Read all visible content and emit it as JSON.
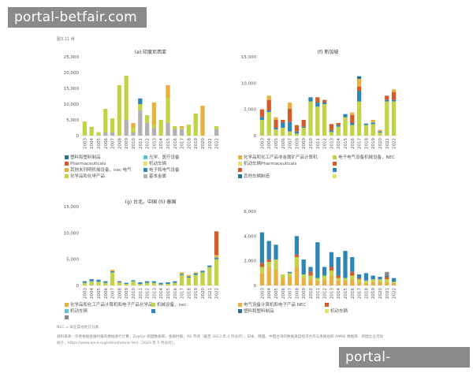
{
  "watermark": "portal-betfair.com",
  "continued_label": "图3.11 续",
  "colors": {
    "machinery": "#e9b040",
    "chemicals": "#c3d346",
    "electrical": "#2d86b7",
    "pharma": "#d45a27",
    "base_metals": "#b1b1b1",
    "optical": "#57c3d4",
    "vehicles": "#e3e36a",
    "plastics": "#2a6f8e"
  },
  "legend_left": {
    "items": [
      {
        "label": "塑料和塑料制品",
        "color": "#2a6f8e"
      },
      {
        "label": "光学、医疗设备",
        "color": "#57c3d4"
      },
      {
        "label": "Pharmaceuticals",
        "color": "#d45a27"
      },
      {
        "label": "机动车辆",
        "color": "#e3e36a"
      },
      {
        "label": "其他未列明机械设备，nec 电气",
        "color": "#e9b040"
      },
      {
        "label": "电子和电气设备",
        "color": "#2d86b7"
      },
      {
        "label": "化学品和化学产品",
        "color": "#c3d346"
      },
      {
        "label": "基本金属",
        "color": "#b1b1b1"
      }
    ]
  },
  "legend_right": {
    "items": [
      {
        "label": "化学品和化工产品非金属矿产品计算机",
        "color": "#e9b040"
      },
      {
        "label": "电子电气设备机械设备，NEC",
        "color": "#c3d346"
      },
      {
        "label": "机动车辆Pharmaceuticals",
        "color": "#e3e36a"
      },
      {
        "label": "",
        "color": "#d45a27"
      },
      {
        "label": "",
        "color": "#d45a27"
      },
      {
        "label": "",
        "color": "#2d86b7"
      },
      {
        "label": "其他车辆制造",
        "color": "#2a6f8e"
      },
      {
        "label": "",
        "color": "#e3e36a"
      }
    ]
  },
  "legend_bottom": {
    "items": [
      {
        "label": "化学品和化工产品计算机和电子产品化学品",
        "color": "#e9b040"
      },
      {
        "label": "机械设备，nec",
        "color": "#c3d346"
      },
      {
        "label": "电气设备计算机和电子产品 NEC",
        "color": "#e9b040"
      },
      {
        "label": "",
        "color": "#d45a27"
      },
      {
        "label": "机动车辆",
        "color": "#57c3d4"
      },
      {
        "label": "",
        "color": "#2d86b7"
      },
      {
        "label": "塑料和塑料制品",
        "color": "#2a6f8e"
      },
      {
        "label": "机动车辆",
        "color": "#e3e36a"
      },
      {
        "label": "",
        "color": "#8a8a8a"
      }
    ]
  },
  "notes": {
    "nec": "NEC = 未在其他地方分类",
    "source1": "资料来源：作者根据金融时报的数据进行计算，Zephyr 跨国数据库，金融时报，fDi 市场（截至 2023 年 4 月访问）；日本、韩国、中国台湾的数据来自经济合作与发展组织 AMNE 数据库：跨国企业活动",
    "source2": "统计，https://www.oecd.org/sti/ind/amne.htm（2023 年 5 月访问）。"
  },
  "chart_data": [
    {
      "id": "e",
      "title": "(e) 印度尼西亚",
      "type": "bar",
      "stacked": true,
      "ylim": [
        0,
        25000
      ],
      "yticks": [
        "0",
        "5,000",
        "10,000",
        "15,000",
        "20,000",
        "25,000"
      ],
      "categories": [
        "2003",
        "2004",
        "2005",
        "2006",
        "2007",
        "2008",
        "2009",
        "2010",
        "2011",
        "2012",
        "2013",
        "2014",
        "2015",
        "2016",
        "2017",
        "2018",
        "2019",
        "2020",
        "2021",
        "2022"
      ],
      "series": [
        {
          "name": "Base metals",
          "color": "#b1b1b1",
          "values": [
            0,
            0,
            200,
            1000,
            1000,
            0,
            5000,
            1000,
            8000,
            4000,
            2500,
            0,
            4000,
            2000,
            2000,
            0,
            0,
            0,
            0,
            2000
          ]
        },
        {
          "name": "Chemicals",
          "color": "#c3d346",
          "values": [
            4500,
            2800,
            900,
            7500,
            4500,
            16000,
            14000,
            1500,
            2000,
            2500,
            1000,
            5000,
            8000,
            1000,
            500,
            3500,
            7000,
            0,
            0,
            1000
          ]
        },
        {
          "name": "Machinery",
          "color": "#e9b040",
          "values": [
            0,
            0,
            0,
            0,
            0,
            0,
            0,
            1500,
            0,
            0,
            7000,
            0,
            4000,
            0,
            500,
            0,
            0,
            9500,
            0,
            0
          ]
        },
        {
          "name": "Electrical",
          "color": "#2d86b7",
          "values": [
            0,
            0,
            0,
            0,
            0,
            0,
            0,
            0,
            1800,
            0,
            0,
            0,
            0,
            0,
            0,
            0,
            0,
            0,
            0,
            0
          ]
        },
        {
          "name": "Vehicles",
          "color": "#e3e36a",
          "values": [
            0,
            0,
            0,
            0,
            0,
            0,
            0,
            0,
            0,
            0,
            0,
            0,
            0,
            0,
            0,
            0,
            0,
            0,
            0,
            0
          ]
        }
      ]
    },
    {
      "id": "f",
      "title": "(f) 新加坡",
      "type": "bar",
      "stacked": true,
      "ylim": [
        0,
        15000
      ],
      "yticks": [
        "0",
        "5,000",
        "10,000",
        "15,000"
      ],
      "categories": [
        "2003",
        "2004",
        "2005",
        "2006",
        "2007",
        "2008",
        "2009",
        "2010",
        "2011",
        "2012",
        "2013",
        "2014",
        "2015",
        "2016",
        "2017",
        "2018",
        "2019",
        "2020",
        "2021",
        "2022"
      ],
      "series": [
        {
          "name": "Chemicals",
          "color": "#c3d346",
          "values": [
            3000,
            4500,
            1200,
            1500,
            800,
            400,
            1500,
            6500,
            5500,
            6000,
            700,
            1700,
            3500,
            2000,
            6500,
            2000,
            2200,
            600,
            6500,
            6500
          ]
        },
        {
          "name": "Electrical",
          "color": "#2d86b7",
          "values": [
            500,
            300,
            300,
            1000,
            1800,
            400,
            200,
            800,
            800,
            300,
            300,
            300,
            600,
            400,
            2000,
            300,
            300,
            200,
            300,
            300
          ]
        },
        {
          "name": "Pharmaceuticals",
          "color": "#d45a27",
          "values": [
            1500,
            2000,
            1500,
            500,
            2500,
            1200,
            1300,
            0,
            1000,
            500,
            1200,
            400,
            0,
            1500,
            800,
            0,
            0,
            0,
            800,
            1500
          ]
        },
        {
          "name": "Machinery",
          "color": "#e9b040",
          "values": [
            0,
            800,
            500,
            0,
            1200,
            0,
            0,
            0,
            0,
            0,
            0,
            0,
            0,
            500,
            1500,
            0,
            500,
            300,
            0,
            500
          ]
        },
        {
          "name": "Plastics",
          "color": "#2a6f8e",
          "values": [
            0,
            0,
            0,
            0,
            0,
            0,
            0,
            0,
            0,
            0,
            0,
            0,
            0,
            0,
            500,
            0,
            0,
            0,
            0,
            0
          ]
        }
      ]
    },
    {
      "id": "g",
      "title": "(g) 台北，中国 (h) 泰国",
      "type": "bar",
      "stacked": true,
      "ylim": [
        0,
        15000
      ],
      "yticks": [
        "0",
        "5,000",
        "10,000",
        "15,000"
      ],
      "categories": [
        "2003",
        "2004",
        "2005",
        "2006",
        "2007",
        "2008",
        "2009",
        "2010",
        "2011",
        "2012",
        "2013",
        "2014",
        "2015",
        "2016",
        "2017",
        "2018",
        "2019",
        "2020",
        "2021",
        "2022"
      ],
      "series": [
        {
          "name": "Chemicals",
          "color": "#c3d346",
          "values": [
            500,
            800,
            700,
            500,
            2500,
            600,
            300,
            800,
            300,
            500,
            500,
            200,
            300,
            500,
            2000,
            1500,
            2000,
            2500,
            3500,
            5000
          ]
        },
        {
          "name": "Electrical",
          "color": "#2d86b7",
          "values": [
            300,
            400,
            400,
            300,
            200,
            200,
            200,
            200,
            300,
            300,
            300,
            300,
            300,
            300,
            200,
            200,
            300,
            300,
            300,
            300
          ]
        },
        {
          "name": "Machinery",
          "color": "#e9b040",
          "values": [
            0,
            0,
            0,
            0,
            300,
            0,
            0,
            0,
            0,
            0,
            0,
            0,
            0,
            0,
            300,
            300,
            200,
            0,
            0,
            500
          ]
        },
        {
          "name": "Pharmaceuticals",
          "color": "#d45a27",
          "values": [
            0,
            0,
            0,
            0,
            0,
            0,
            0,
            0,
            0,
            0,
            0,
            0,
            0,
            0,
            0,
            0,
            0,
            0,
            0,
            4500
          ]
        }
      ]
    },
    {
      "id": "h",
      "title": "",
      "type": "bar",
      "stacked": true,
      "ylim": [
        0,
        6000
      ],
      "yticks": [
        "0",
        "2,000",
        "4,000",
        "6,000"
      ],
      "categories": [
        "2003",
        "2004",
        "2005",
        "2006",
        "2007",
        "2008",
        "2009",
        "2010",
        "2011",
        "2012",
        "2013",
        "2014",
        "2015",
        "2016",
        "2017",
        "2018",
        "2019",
        "2020",
        "2021",
        "2022"
      ],
      "series": [
        {
          "name": "Machinery",
          "color": "#e9b040",
          "values": [
            1000,
            1500,
            1300,
            600,
            700,
            1500,
            600,
            500,
            400,
            500,
            800,
            400,
            400,
            500,
            300,
            200,
            300,
            300,
            300,
            200
          ]
        },
        {
          "name": "Chemicals",
          "color": "#c3d346",
          "values": [
            500,
            400,
            800,
            300,
            300,
            800,
            300,
            300,
            200,
            300,
            400,
            200,
            200,
            300,
            200,
            200,
            200,
            200,
            200,
            100
          ]
        },
        {
          "name": "Pharmaceuticals",
          "color": "#d45a27",
          "values": [
            300,
            200,
            0,
            0,
            0,
            200,
            0,
            300,
            0,
            0,
            300,
            200,
            0,
            300,
            100,
            0,
            0,
            0,
            200,
            0
          ]
        },
        {
          "name": "Electrical",
          "color": "#2d86b7",
          "values": [
            2500,
            1500,
            1200,
            0,
            100,
            1500,
            1200,
            400,
            2900,
            700,
            1200,
            1500,
            2200,
            1200,
            300,
            600,
            300,
            200,
            100,
            300
          ]
        },
        {
          "name": "Vehicles",
          "color": "#e3e36a",
          "values": [
            0,
            0,
            0,
            0,
            0,
            0,
            0,
            0,
            0,
            0,
            0,
            0,
            0,
            0,
            0,
            0,
            0,
            0,
            0,
            0
          ]
        },
        {
          "name": "Other",
          "color": "#8a8a8a",
          "values": [
            0,
            0,
            0,
            0,
            0,
            0,
            0,
            0,
            0,
            0,
            0,
            0,
            0,
            0,
            0,
            0,
            0,
            0,
            300,
            0
          ]
        }
      ]
    }
  ]
}
